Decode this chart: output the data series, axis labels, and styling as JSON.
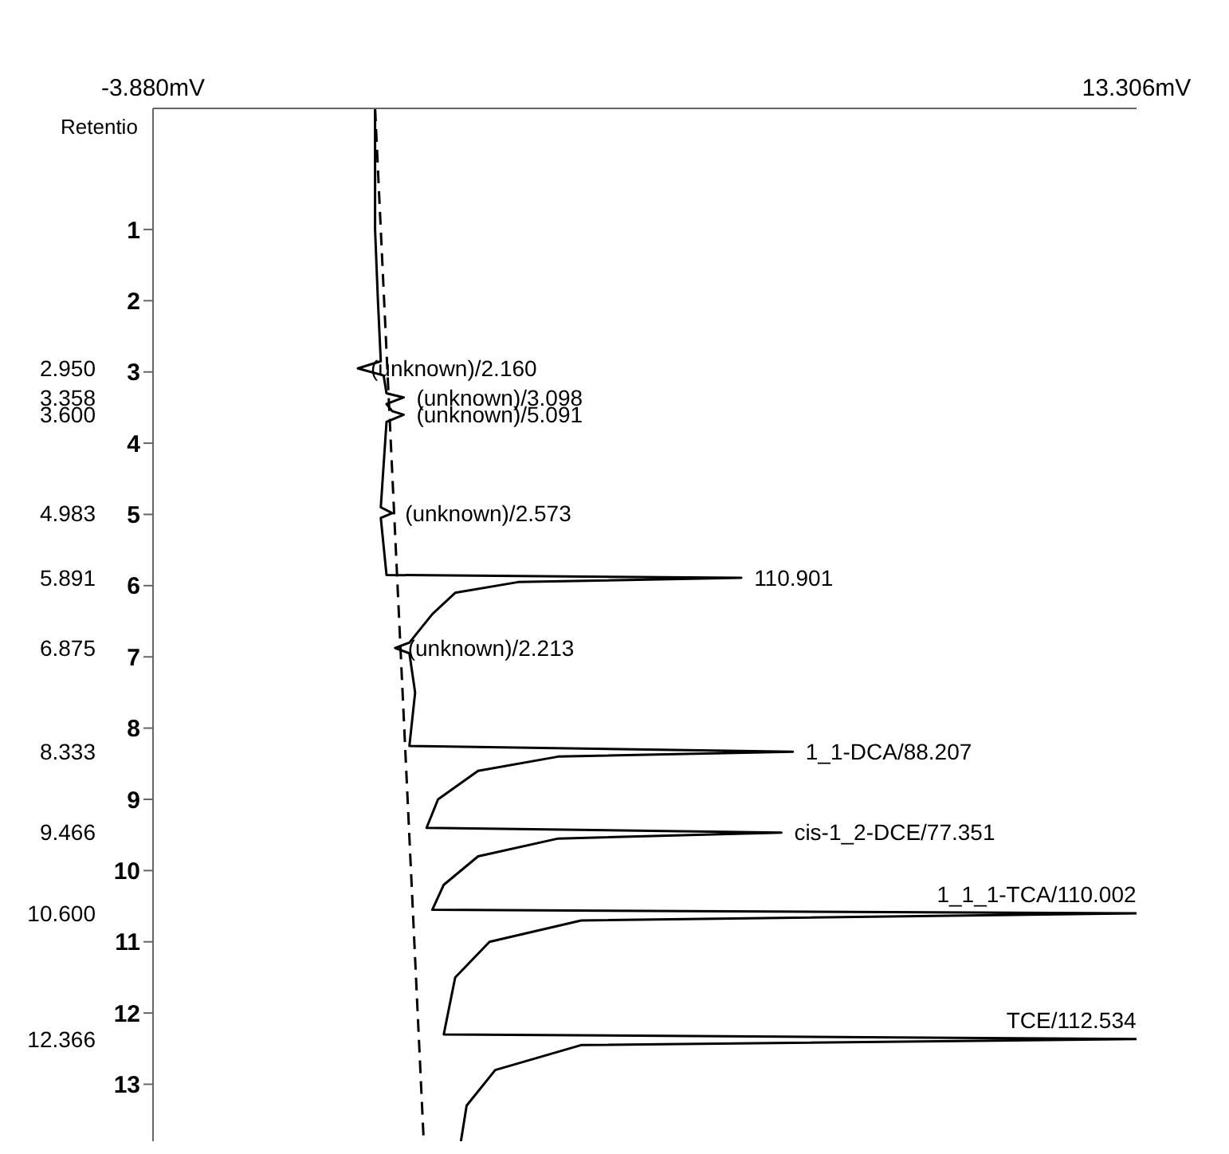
{
  "chart_data": {
    "type": "line",
    "orientation": "horizontal",
    "ylabel": "Retentio",
    "xlim": [
      -3.88,
      13.306
    ],
    "xticks": [
      {
        "value": -3.88,
        "label": "-3.880mV"
      },
      {
        "value": 13.306,
        "label": "13.306mV"
      }
    ],
    "ylim": [
      13.8,
      -0.7
    ],
    "yticks": [
      1,
      2,
      3,
      4,
      5,
      6,
      7,
      8,
      9,
      10,
      11,
      12,
      13
    ],
    "y2lim": [
      13.8,
      -0.7
    ],
    "y2ticks": [
      {
        "value": 2.95,
        "label": "2.950"
      },
      {
        "value": 3.358,
        "label": "3.358"
      },
      {
        "value": 3.6,
        "label": "3.600"
      },
      {
        "value": 4.983,
        "label": "4.983"
      },
      {
        "value": 5.891,
        "label": "5.891"
      },
      {
        "value": 6.875,
        "label": "6.875"
      },
      {
        "value": 8.333,
        "label": "8.333"
      },
      {
        "value": 9.466,
        "label": "9.466"
      },
      {
        "value": 10.6,
        "label": "10.600"
      },
      {
        "value": 12.366,
        "label": "12.366"
      }
    ],
    "grid": false,
    "series": [
      {
        "color": "#000000",
        "line_style": "solid",
        "x": [
          -0.7,
          0,
          1,
          2,
          2.85,
          2.95,
          3.05,
          3.3,
          3.358,
          3.45,
          3.55,
          3.6,
          3.7,
          4.9,
          4.983,
          5.05,
          5.85,
          5.891,
          5.95,
          6.1,
          6.4,
          6.8,
          6.875,
          6.95,
          7.5,
          8.25,
          8.333,
          8.4,
          8.6,
          9.0,
          9.4,
          9.466,
          9.55,
          9.8,
          10.2,
          10.55,
          10.6,
          10.7,
          11.0,
          11.5,
          12.3,
          12.366,
          12.45,
          12.8,
          13.3,
          13.8
        ],
        "values": [
          0,
          0,
          0,
          0.05,
          0.1,
          -0.3,
          0.15,
          0.2,
          0.5,
          0.2,
          0.3,
          0.5,
          0.2,
          0.1,
          0.3,
          0.1,
          0.2,
          6.4,
          2.5,
          1.4,
          1.0,
          0.6,
          0.35,
          0.6,
          0.7,
          0.6,
          7.3,
          3.2,
          1.8,
          1.1,
          0.9,
          7.1,
          3.2,
          1.8,
          1.2,
          1.0,
          13.3,
          3.6,
          2.0,
          1.4,
          1.2,
          13.3,
          3.6,
          2.1,
          1.6,
          1.5
        ]
      },
      {
        "color": "#000000",
        "line_style": "dashed",
        "x": [
          -0.7,
          13.8
        ],
        "values": [
          0,
          0.85
        ]
      }
    ],
    "annotations": [
      {
        "text": "(unknown)/2.160",
        "x": -0.3,
        "y": 2.95
      },
      {
        "text": "(unknown)/3.098",
        "x": 0.5,
        "y": 3.358
      },
      {
        "text": "(unknown)/5.091",
        "x": 0.5,
        "y": 3.6
      },
      {
        "text": "(unknown)/2.573",
        "x": 0.3,
        "y": 4.983
      },
      {
        "text": "110.901",
        "x": 6.4,
        "y": 5.891
      },
      {
        "text": "(unknown)/2.213",
        "x": 0.35,
        "y": 6.875
      },
      {
        "text": "1_1-DCA/88.207",
        "x": 7.3,
        "y": 8.333
      },
      {
        "text": "cis-1_2-DCE/77.351",
        "x": 7.1,
        "y": 9.466
      },
      {
        "text": "1_1_1-TCA/110.002",
        "x": 13.3,
        "y": 10.6
      },
      {
        "text": "TCE/112.534",
        "x": 13.3,
        "y": 12.366
      }
    ]
  }
}
